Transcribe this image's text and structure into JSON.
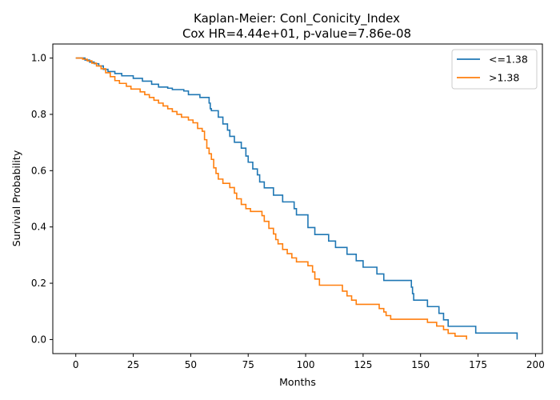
{
  "chart_data": {
    "type": "line",
    "title": "Kaplan-Meier: Conl_Conicity_Index",
    "subtitle": "Cox HR=4.44e+01, p-value=7.86e-08",
    "xlabel": "Months",
    "ylabel": "Survival Probability",
    "xlim": [
      -10,
      203
    ],
    "ylim": [
      -0.05,
      1.05
    ],
    "xticks": [
      0,
      25,
      50,
      75,
      100,
      125,
      150,
      175,
      200
    ],
    "yticks": [
      0.0,
      0.2,
      0.4,
      0.6,
      0.8,
      1.0
    ],
    "grid": false,
    "legend_position": "top-right",
    "series": [
      {
        "name": "<=1.38",
        "color": "#1f77b4",
        "x": [
          0,
          4,
          6,
          8,
          10,
          12,
          14,
          17,
          20,
          25,
          29,
          33,
          36,
          40,
          42,
          47,
          49,
          54,
          58,
          58.5,
          59,
          62,
          64,
          66,
          67,
          69,
          72,
          74,
          75,
          77,
          79,
          80,
          82,
          86,
          90,
          95,
          96,
          101,
          104,
          110,
          113,
          118,
          122,
          125,
          131,
          134,
          146,
          146.5,
          147,
          153,
          158,
          160,
          162,
          174,
          192
        ],
        "y": [
          1.0,
          0.993,
          0.986,
          0.98,
          0.972,
          0.96,
          0.952,
          0.945,
          0.937,
          0.928,
          0.918,
          0.907,
          0.897,
          0.893,
          0.888,
          0.883,
          0.87,
          0.86,
          0.84,
          0.82,
          0.813,
          0.79,
          0.766,
          0.744,
          0.722,
          0.701,
          0.68,
          0.652,
          0.63,
          0.606,
          0.585,
          0.56,
          0.539,
          0.513,
          0.489,
          0.465,
          0.443,
          0.398,
          0.373,
          0.35,
          0.327,
          0.303,
          0.28,
          0.257,
          0.233,
          0.21,
          0.186,
          0.163,
          0.14,
          0.117,
          0.093,
          0.07,
          0.047,
          0.023,
          0.0
        ]
      },
      {
        "name": ">1.38",
        "color": "#ff7f0e",
        "x": [
          0,
          3,
          5,
          7,
          9,
          11,
          13,
          15,
          17,
          19,
          22,
          24,
          28,
          30,
          32,
          34,
          36,
          38,
          40,
          42,
          44,
          46,
          49,
          51,
          53,
          55,
          56,
          57,
          58,
          59,
          60,
          61,
          62,
          64,
          67,
          69,
          70,
          72,
          74,
          76,
          81,
          82,
          84,
          86,
          87,
          88,
          90,
          92,
          94,
          96,
          101,
          103,
          104,
          106,
          116,
          118,
          120,
          122,
          132,
          134,
          135,
          137,
          141,
          153,
          157,
          160,
          162,
          165,
          170
        ],
        "y": [
          1.0,
          0.996,
          0.99,
          0.982,
          0.972,
          0.962,
          0.948,
          0.934,
          0.92,
          0.91,
          0.9,
          0.89,
          0.88,
          0.87,
          0.86,
          0.85,
          0.84,
          0.83,
          0.82,
          0.81,
          0.8,
          0.79,
          0.78,
          0.77,
          0.75,
          0.74,
          0.71,
          0.68,
          0.66,
          0.64,
          0.61,
          0.59,
          0.57,
          0.555,
          0.54,
          0.52,
          0.5,
          0.48,
          0.465,
          0.455,
          0.44,
          0.42,
          0.395,
          0.375,
          0.355,
          0.34,
          0.32,
          0.305,
          0.29,
          0.276,
          0.262,
          0.24,
          0.215,
          0.193,
          0.172,
          0.155,
          0.14,
          0.125,
          0.11,
          0.098,
          0.085,
          0.072,
          0.072,
          0.061,
          0.048,
          0.035,
          0.022,
          0.012,
          0.0
        ]
      }
    ]
  }
}
